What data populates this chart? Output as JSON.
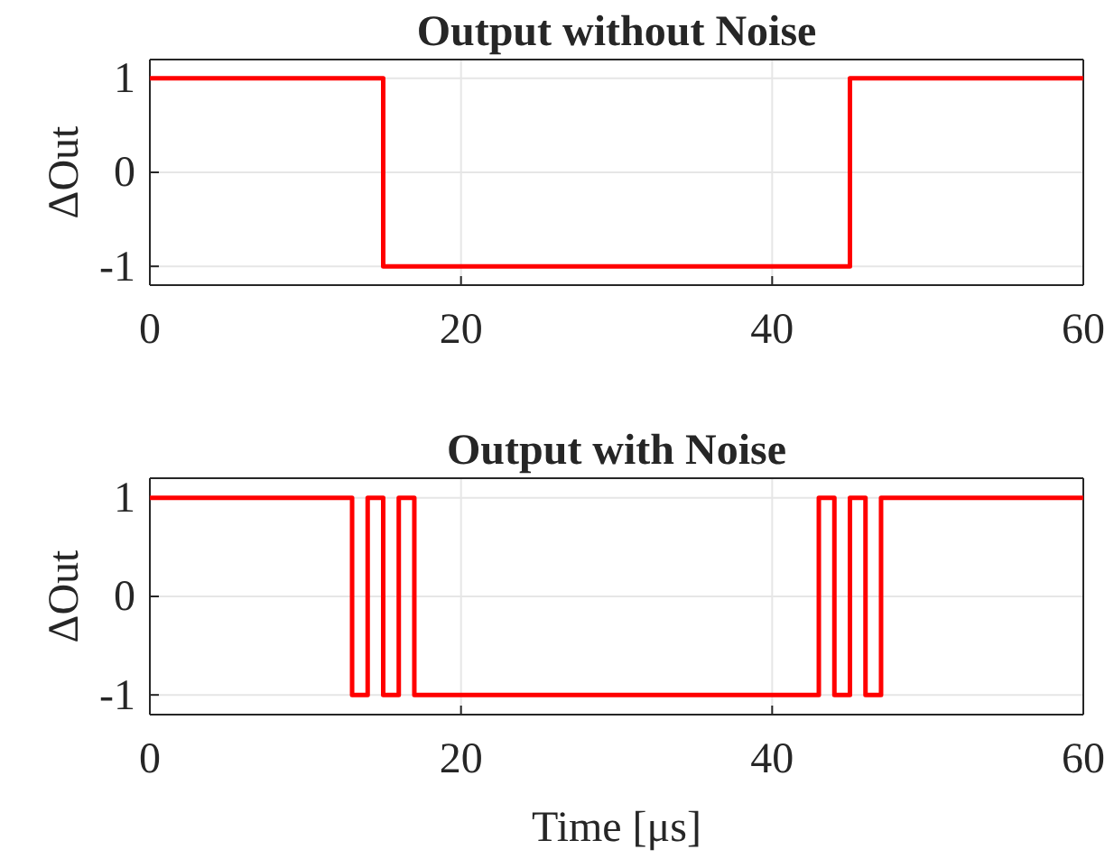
{
  "chart_data": [
    {
      "type": "step",
      "title": "Output without Noise",
      "ylabel": "ΔOut",
      "x": [
        0,
        15,
        45,
        60
      ],
      "series": [
        {
          "color": "#ff0000",
          "values": [
            1,
            -1,
            1,
            1
          ]
        }
      ],
      "xlim": [
        0,
        60
      ],
      "xticks": [
        0,
        20,
        40,
        60
      ],
      "ylim": [
        -1.2,
        1.2
      ],
      "yticks": [
        -1,
        0,
        1
      ],
      "grid": true
    },
    {
      "type": "step",
      "title": "Output with Noise",
      "ylabel": "ΔOut",
      "xlabel": "Time [μs]",
      "x": [
        0,
        13,
        14,
        15,
        16,
        17,
        43,
        44,
        45,
        46,
        47,
        60
      ],
      "series": [
        {
          "color": "#ff0000",
          "values": [
            1,
            -1,
            1,
            -1,
            1,
            -1,
            1,
            -1,
            1,
            -1,
            1,
            1
          ]
        }
      ],
      "xlim": [
        0,
        60
      ],
      "xticks": [
        0,
        20,
        40,
        60
      ],
      "ylim": [
        -1.2,
        1.2
      ],
      "yticks": [
        -1,
        0,
        1
      ],
      "grid": true
    }
  ]
}
